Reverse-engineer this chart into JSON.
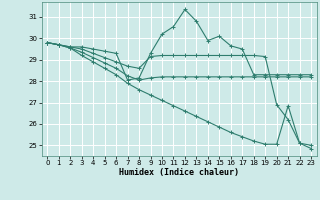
{
  "xlabel": "Humidex (Indice chaleur)",
  "xlim": [
    -0.5,
    23.5
  ],
  "ylim": [
    24.5,
    31.7
  ],
  "yticks": [
    25,
    26,
    27,
    28,
    29,
    30,
    31
  ],
  "xticks": [
    0,
    1,
    2,
    3,
    4,
    5,
    6,
    7,
    8,
    9,
    10,
    11,
    12,
    13,
    14,
    15,
    16,
    17,
    18,
    19,
    20,
    21,
    22,
    23
  ],
  "bg_color": "#ceeae8",
  "grid_color": "#ffffff",
  "line_color": "#2e7d6e",
  "lines": [
    [
      29.8,
      29.7,
      29.6,
      29.6,
      29.5,
      29.4,
      29.3,
      28.05,
      28.15,
      29.3,
      30.2,
      30.55,
      31.35,
      30.8,
      29.9,
      30.1,
      29.65,
      29.5,
      28.3,
      28.3,
      28.3,
      28.3,
      28.3,
      28.3
    ],
    [
      29.8,
      29.7,
      29.6,
      29.5,
      29.3,
      29.1,
      28.9,
      28.7,
      28.6,
      29.15,
      29.2,
      29.2,
      29.2,
      29.2,
      29.2,
      29.2,
      29.2,
      29.2,
      29.2,
      29.15,
      26.9,
      26.2,
      25.1,
      25.0
    ],
    [
      29.8,
      29.7,
      29.55,
      29.35,
      29.1,
      28.85,
      28.6,
      28.25,
      28.05,
      28.15,
      28.2,
      28.2,
      28.2,
      28.2,
      28.2,
      28.2,
      28.2,
      28.2,
      28.2,
      28.2,
      28.2,
      28.2,
      28.2,
      28.2
    ],
    [
      29.8,
      29.7,
      29.55,
      29.2,
      28.9,
      28.6,
      28.3,
      27.9,
      27.6,
      27.35,
      27.1,
      26.85,
      26.6,
      26.35,
      26.1,
      25.85,
      25.6,
      25.4,
      25.2,
      25.05,
      25.05,
      26.85,
      25.1,
      24.85
    ]
  ]
}
